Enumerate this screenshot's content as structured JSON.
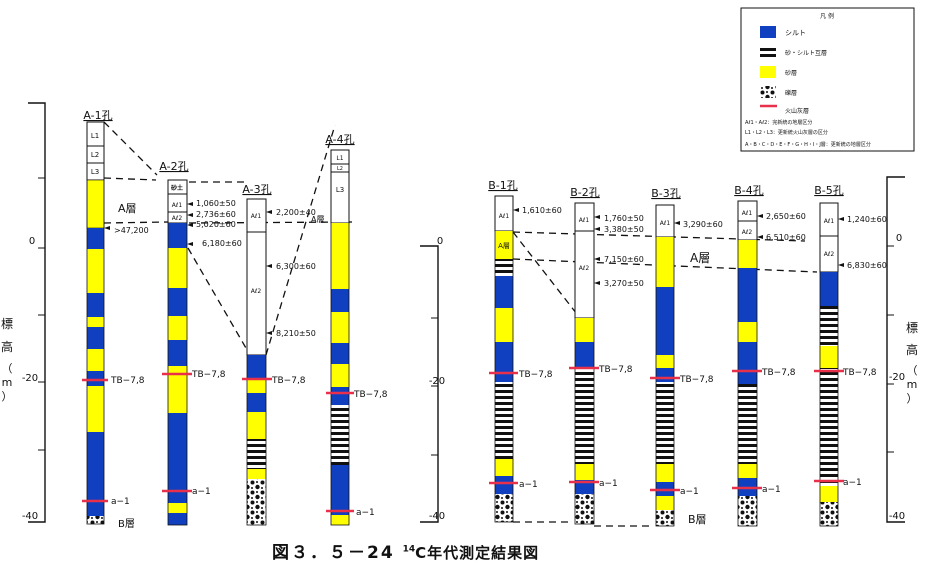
{
  "caption": {
    "figure_no": "図３．５－24",
    "sup": "14",
    "title": "C年代測定結果図"
  },
  "axis": {
    "title_chars": [
      "標",
      "高",
      "（",
      "m",
      "）"
    ],
    "ticks": [
      "0",
      "-20",
      "-40"
    ]
  },
  "legend": {
    "title": "凡 例",
    "items": [
      {
        "label": "シルト",
        "color": "#1040c0"
      },
      {
        "label": "砂・シルト互層"
      },
      {
        "label": "砂層",
        "color": "#ffff00"
      },
      {
        "label": "礫層"
      },
      {
        "label": "火山灰層",
        "color": "#e8304a"
      }
    ],
    "notes": [
      "Aℓ1・Aℓ2：完新統の地層区分",
      "L1・L2・L3：更新統火山灰層の区分",
      "A・B・C・D・E・F・G・H・I・J層：更新統の地層区分"
    ]
  },
  "boreholes": [
    {
      "id": "A-1",
      "label": "A-1孔"
    },
    {
      "id": "A-2",
      "label": "A-2孔"
    },
    {
      "id": "A-3",
      "label": "A-3孔"
    },
    {
      "id": "A-4",
      "label": "A-4孔"
    },
    {
      "id": "B-1",
      "label": "B-1孔"
    },
    {
      "id": "B-2",
      "label": "B-2孔"
    },
    {
      "id": "B-3",
      "label": "B-3孔"
    },
    {
      "id": "B-4",
      "label": "B-4孔"
    },
    {
      "id": "B-5",
      "label": "B-5孔"
    }
  ],
  "unit_labels": {
    "L1": "L1",
    "L2": "L2",
    "L3": "L3",
    "Al1": "Aℓ1",
    "Al2": "Aℓ2",
    "kanji_a2": "砂土",
    "A_layer_a1": "A層",
    "A_layer_a4": "A層",
    "A_layer_b1": "A層",
    "A_layer_group_a": "A層",
    "A_layer_group_b": "A層",
    "B_layer_a": "B層",
    "B_layer_b": "B層"
  },
  "markers": {
    "tb": "TB−7,8",
    "a1": "a−1"
  },
  "ages": {
    "a1": ">47,200",
    "a2": [
      "1,060±50",
      "2,736±60",
      "5,020±60",
      "6,180±60"
    ],
    "a3": [
      "2,200±40",
      "6,300±60",
      "8,210±50"
    ],
    "b1": [
      "1,610±60"
    ],
    "b2": [
      "1,760±50",
      "3,380±50",
      "7,150±60",
      "3,270±50"
    ],
    "b3": [
      "3,290±60"
    ],
    "b4": [
      "2,650±60",
      "6,510±60"
    ],
    "b5": [
      "1,240±60",
      "6,830±60"
    ]
  }
}
